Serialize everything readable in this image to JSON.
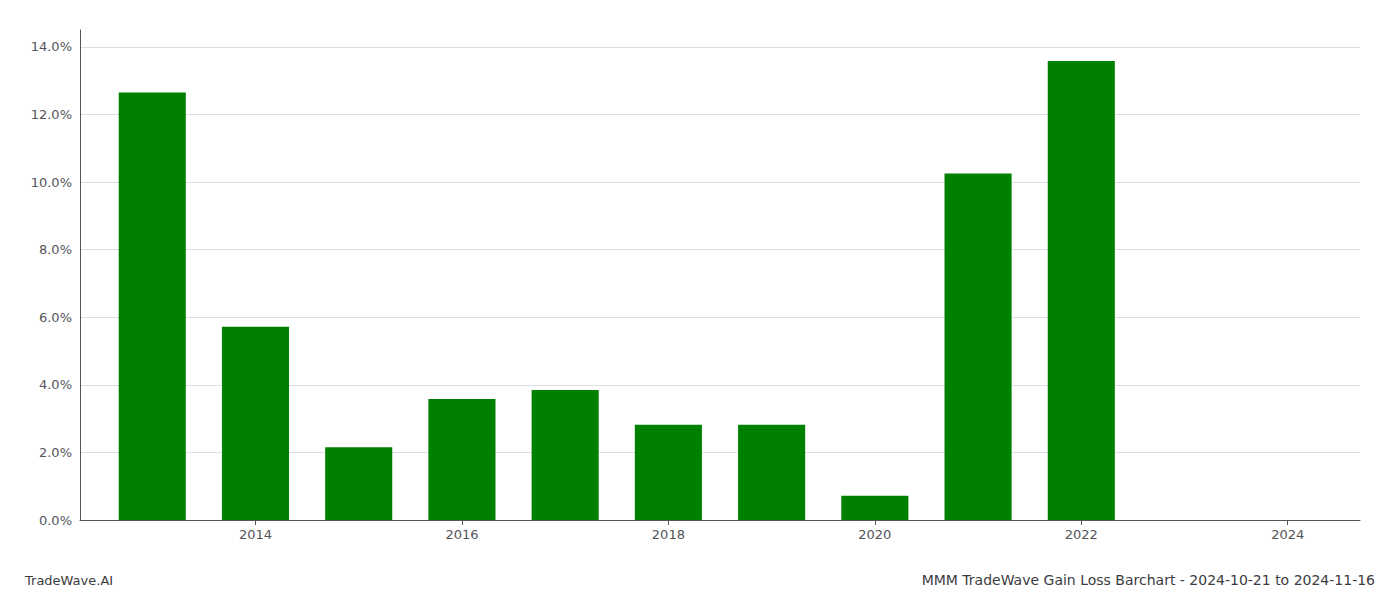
{
  "chart_data": {
    "type": "bar",
    "title": "MMM TradeWave Gain Loss Barchart - 2024-10-21 to 2024-11-16",
    "annotations": [
      "TradeWave.AI"
    ],
    "x": [
      2013,
      2014,
      2015,
      2016,
      2017,
      2018,
      2019,
      2020,
      2021,
      2022
    ],
    "values": [
      0.1265,
      0.0572,
      0.0215,
      0.0358,
      0.0385,
      0.0282,
      0.0282,
      0.0072,
      0.1025,
      0.1358
    ],
    "color": "#008000",
    "xlim": [
      2012.3,
      2024.7
    ],
    "xticks": [
      2014,
      2016,
      2018,
      2020,
      2022,
      2024
    ],
    "ylim": [
      0,
      0.145
    ],
    "yticks": [
      {
        "value": 0.0,
        "label": "0.0%"
      },
      {
        "value": 0.02,
        "label": "2.0%"
      },
      {
        "value": 0.04,
        "label": "4.0%"
      },
      {
        "value": 0.06,
        "label": "6.0%"
      },
      {
        "value": 0.08,
        "label": "8.0%"
      },
      {
        "value": 0.1,
        "label": "10.0%"
      },
      {
        "value": 0.12,
        "label": "12.0%"
      },
      {
        "value": 0.14,
        "label": "14.0%"
      }
    ],
    "grid": true
  }
}
